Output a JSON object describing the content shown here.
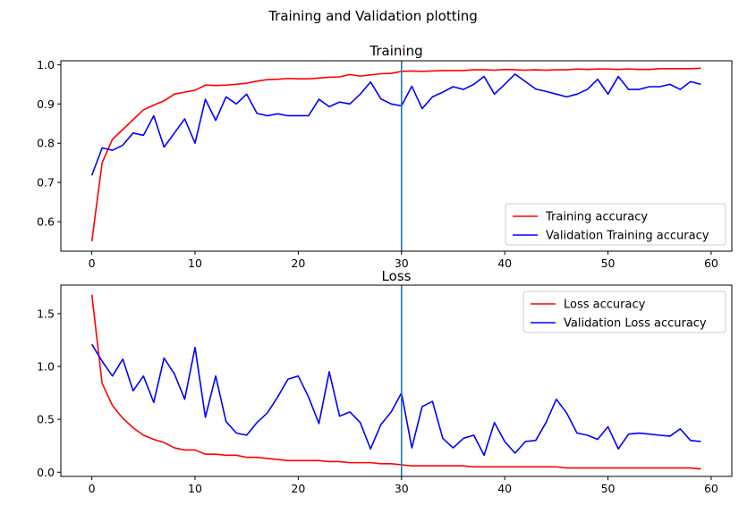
{
  "figure": {
    "suptitle": "Training and Validation plotting"
  },
  "chart_data": [
    {
      "type": "line",
      "title": "Training",
      "xlim": [
        -3,
        62
      ],
      "ylim": [
        0.525,
        1.01
      ],
      "xticks": [
        0,
        10,
        20,
        30,
        40,
        50,
        60
      ],
      "yticks": [
        0.6,
        0.7,
        0.8,
        0.9,
        1.0
      ],
      "ytick_labels": [
        "0.6",
        "0.7",
        "0.8",
        "0.9",
        "1.0"
      ],
      "vline_x": 30,
      "vline_color": "#1f77b4",
      "legend_loc": "lower right",
      "series": [
        {
          "name": "Training accuracy",
          "color": "#ff0000",
          "values": [
            0.55,
            0.75,
            0.81,
            0.835,
            0.86,
            0.885,
            0.897,
            0.908,
            0.925,
            0.93,
            0.935,
            0.948,
            0.947,
            0.948,
            0.95,
            0.953,
            0.958,
            0.962,
            0.963,
            0.965,
            0.964,
            0.964,
            0.966,
            0.968,
            0.969,
            0.975,
            0.971,
            0.974,
            0.977,
            0.978,
            0.983,
            0.984,
            0.983,
            0.984,
            0.985,
            0.985,
            0.985,
            0.987,
            0.987,
            0.986,
            0.988,
            0.987,
            0.986,
            0.987,
            0.986,
            0.987,
            0.987,
            0.989,
            0.988,
            0.989,
            0.989,
            0.988,
            0.989,
            0.988,
            0.988,
            0.99,
            0.99,
            0.99,
            0.99,
            0.991
          ]
        },
        {
          "name": "Validation Training accuracy",
          "color": "#0000ff",
          "values": [
            0.718,
            0.788,
            0.782,
            0.795,
            0.826,
            0.82,
            0.87,
            0.79,
            0.826,
            0.862,
            0.8,
            0.912,
            0.858,
            0.918,
            0.9,
            0.925,
            0.876,
            0.87,
            0.875,
            0.87,
            0.87,
            0.87,
            0.912,
            0.893,
            0.905,
            0.9,
            0.925,
            0.956,
            0.913,
            0.9,
            0.895,
            0.945,
            0.888,
            0.918,
            0.93,
            0.944,
            0.937,
            0.95,
            0.97,
            0.925,
            0.95,
            0.976,
            0.957,
            0.938,
            0.932,
            0.925,
            0.918,
            0.925,
            0.937,
            0.963,
            0.925,
            0.97,
            0.937,
            0.937,
            0.944,
            0.944,
            0.95,
            0.937,
            0.957,
            0.95
          ]
        }
      ]
    },
    {
      "type": "line",
      "title": "Loss",
      "xlim": [
        -3,
        62
      ],
      "ylim": [
        -0.04,
        1.77
      ],
      "xticks": [
        0,
        10,
        20,
        30,
        40,
        50,
        60
      ],
      "yticks": [
        0.0,
        0.5,
        1.0,
        1.5
      ],
      "ytick_labels": [
        "0.0",
        "0.5",
        "1.0",
        "1.5"
      ],
      "vline_x": 30,
      "vline_color": "#1f77b4",
      "legend_loc": "upper right",
      "series": [
        {
          "name": "Loss accuracy",
          "color": "#ff0000",
          "values": [
            1.68,
            0.84,
            0.63,
            0.51,
            0.42,
            0.35,
            0.31,
            0.28,
            0.23,
            0.21,
            0.21,
            0.17,
            0.17,
            0.16,
            0.16,
            0.14,
            0.14,
            0.13,
            0.12,
            0.11,
            0.11,
            0.11,
            0.11,
            0.1,
            0.1,
            0.09,
            0.09,
            0.09,
            0.08,
            0.08,
            0.07,
            0.06,
            0.06,
            0.06,
            0.06,
            0.06,
            0.06,
            0.05,
            0.05,
            0.05,
            0.05,
            0.05,
            0.05,
            0.05,
            0.05,
            0.05,
            0.04,
            0.04,
            0.04,
            0.04,
            0.04,
            0.04,
            0.04,
            0.04,
            0.04,
            0.04,
            0.04,
            0.04,
            0.04,
            0.03
          ]
        },
        {
          "name": "Validation Loss accuracy",
          "color": "#0000ff",
          "values": [
            1.21,
            1.05,
            0.91,
            1.07,
            0.77,
            0.91,
            0.66,
            1.08,
            0.93,
            0.69,
            1.18,
            0.52,
            0.91,
            0.48,
            0.37,
            0.35,
            0.47,
            0.56,
            0.71,
            0.88,
            0.91,
            0.71,
            0.46,
            0.95,
            0.53,
            0.57,
            0.47,
            0.22,
            0.45,
            0.57,
            0.75,
            0.23,
            0.62,
            0.67,
            0.32,
            0.23,
            0.32,
            0.35,
            0.16,
            0.47,
            0.29,
            0.18,
            0.29,
            0.3,
            0.47,
            0.69,
            0.56,
            0.37,
            0.35,
            0.31,
            0.43,
            0.22,
            0.36,
            0.37,
            0.36,
            0.35,
            0.34,
            0.41,
            0.3,
            0.29
          ]
        }
      ]
    }
  ]
}
